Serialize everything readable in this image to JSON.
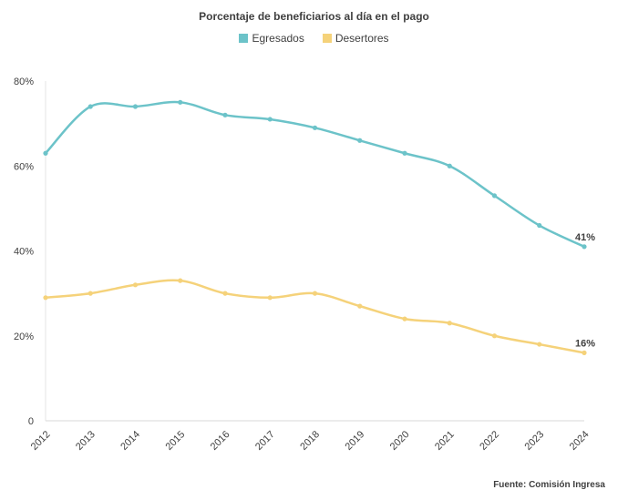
{
  "chart_data": {
    "type": "line",
    "title": "Porcentaje de beneficiarios al día en el pago",
    "x": [
      "2012",
      "2013",
      "2014",
      "2015",
      "2016",
      "2017",
      "2018",
      "2019",
      "2020",
      "2021",
      "2022",
      "2023",
      "2024"
    ],
    "series": [
      {
        "name": "Egresados",
        "color": "#6CC3C9",
        "values": [
          63,
          74,
          74,
          75,
          72,
          71,
          69,
          66,
          63,
          60,
          53,
          46,
          41
        ],
        "end_label": "41%"
      },
      {
        "name": "Desertores",
        "color": "#F5D27A",
        "values": [
          29,
          30,
          32,
          33,
          30,
          29,
          30,
          27,
          24,
          23,
          20,
          18,
          16
        ],
        "end_label": "16%"
      }
    ],
    "ylim": [
      0,
      80
    ],
    "yticks": [
      0,
      20,
      40,
      60,
      80
    ],
    "ytick_labels": [
      "0",
      "20%",
      "40%",
      "60%",
      "80%"
    ],
    "grid": false,
    "legend_position": "top-center",
    "source": "Fuente: Comisión Ingresa"
  }
}
